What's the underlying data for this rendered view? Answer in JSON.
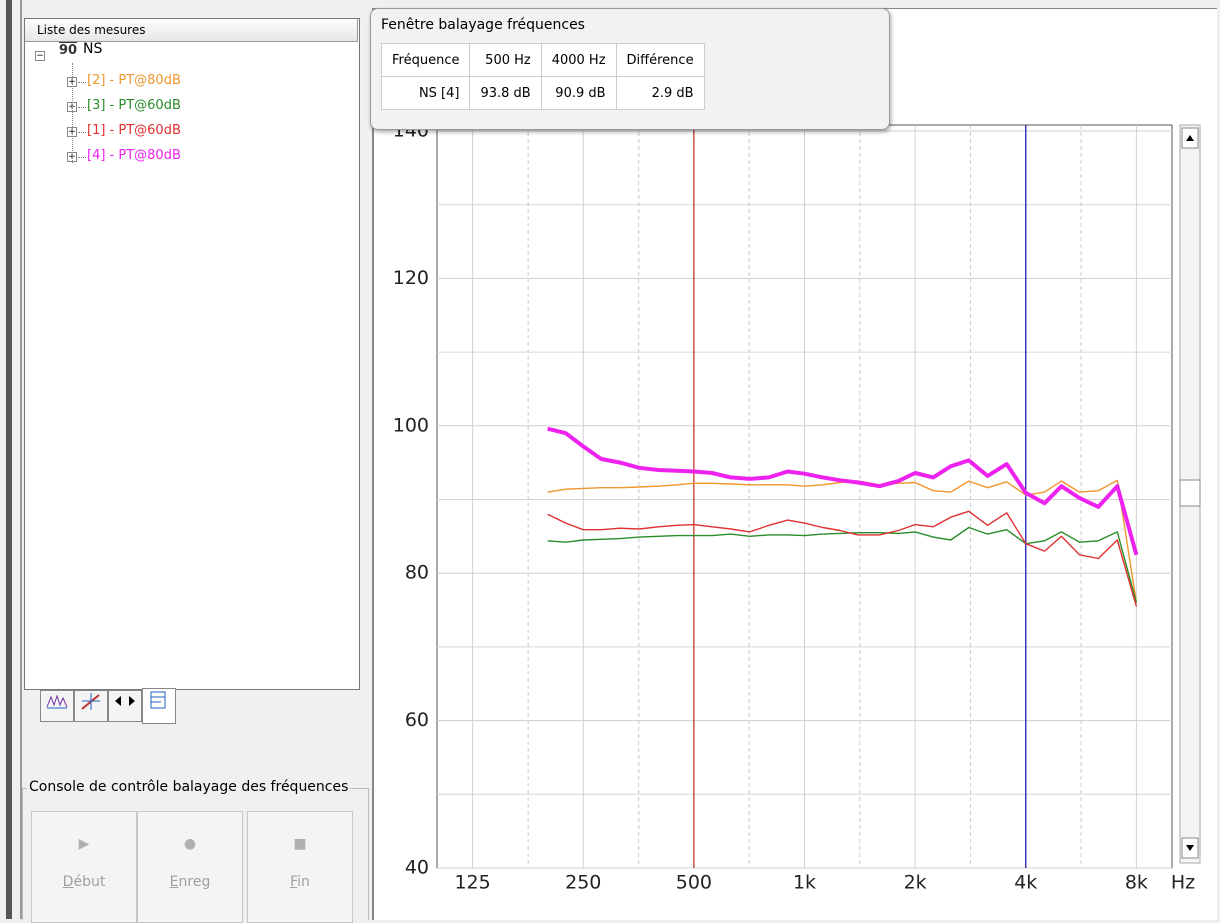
{
  "tree_header": "Liste des mesures",
  "tree": {
    "root": "NS",
    "root_icon": "90"
  },
  "console": {
    "title": "Console de contrôle balayage des fréquences",
    "buttons": [
      "Début",
      "Enreg",
      "Fin"
    ]
  },
  "popup": {
    "title": "Fenêtre balayage fréquences",
    "table": {
      "header": [
        "Fréquence",
        "500 Hz",
        "4000 Hz",
        "Différence"
      ],
      "rows": [
        [
          "NS [4]",
          "93.8 dB",
          "90.9 dB",
          "2.9 dB"
        ]
      ]
    }
  },
  "chart_data": {
    "type": "line",
    "xlog": true,
    "xlabel": "Hz",
    "xlim": [
      100,
      10000
    ],
    "ylim": [
      40,
      140
    ],
    "xticks": [
      125,
      250,
      500,
      {
        "value": 1000,
        "label": "1k"
      },
      {
        "value": 2000,
        "label": "2k"
      },
      {
        "value": 4000,
        "label": "4k"
      },
      {
        "value": 8000,
        "label": "8k"
      }
    ],
    "xminor": [
      177,
      354,
      707,
      1414,
      2828,
      5657
    ],
    "yticks": [
      40,
      60,
      80,
      100,
      120,
      140
    ],
    "yminor": [
      50,
      70,
      90,
      110,
      130
    ],
    "grid": true,
    "cursors": [
      {
        "value": 500,
        "color": "#c0392b"
      },
      {
        "value": 4000,
        "color": "#2020b0"
      }
    ],
    "x": [
      200,
      224,
      250,
      280,
      315,
      355,
      400,
      450,
      500,
      560,
      630,
      710,
      800,
      900,
      1000,
      1120,
      1250,
      1400,
      1600,
      1800,
      2000,
      2240,
      2500,
      2800,
      3150,
      3550,
      4000,
      4500,
      5000,
      5600,
      6300,
      7100,
      8000
    ],
    "series": [
      {
        "name": "[2] - PT@80dB",
        "color": "#f0962e",
        "width": 1.4,
        "values": [
          91.0,
          91.4,
          91.5,
          91.6,
          91.6,
          91.7,
          91.8,
          92.0,
          92.2,
          92.2,
          92.1,
          92.0,
          92.0,
          92.0,
          91.8,
          92.0,
          92.3,
          92.5,
          92.0,
          92.2,
          92.3,
          91.2,
          91.0,
          92.5,
          91.6,
          92.4,
          90.6,
          91.0,
          92.5,
          91.0,
          91.2,
          92.6,
          76.0
        ]
      },
      {
        "name": "[3] - PT@60dB",
        "color": "#2a8c2a",
        "width": 1.4,
        "values": [
          84.4,
          84.2,
          84.5,
          84.6,
          84.7,
          84.9,
          85.0,
          85.1,
          85.1,
          85.1,
          85.3,
          85.0,
          85.2,
          85.2,
          85.1,
          85.3,
          85.4,
          85.5,
          85.5,
          85.4,
          85.6,
          84.9,
          84.5,
          86.2,
          85.3,
          85.9,
          84.0,
          84.4,
          85.6,
          84.2,
          84.4,
          85.6,
          76.0
        ]
      },
      {
        "name": "[1] - PT@60dB",
        "color": "#e03030",
        "width": 1.4,
        "values": [
          88.0,
          86.8,
          85.9,
          85.9,
          86.1,
          86.0,
          86.3,
          86.5,
          86.6,
          86.3,
          86.0,
          85.6,
          86.5,
          87.2,
          86.8,
          86.2,
          85.8,
          85.2,
          85.2,
          85.8,
          86.6,
          86.3,
          87.6,
          88.4,
          86.5,
          88.2,
          84.0,
          83.0,
          85.0,
          82.5,
          82.0,
          84.5,
          75.5
        ]
      },
      {
        "name": "[4] - PT@80dB",
        "color": "#ee22ee",
        "width": 4,
        "values": [
          99.6,
          99.0,
          97.2,
          95.5,
          95.0,
          94.3,
          94.0,
          93.9,
          93.8,
          93.6,
          93.0,
          92.8,
          93.0,
          93.8,
          93.5,
          93.0,
          92.6,
          92.3,
          91.8,
          92.5,
          93.6,
          93.0,
          94.5,
          95.3,
          93.2,
          94.8,
          90.9,
          89.5,
          91.8,
          90.2,
          89.0,
          91.8,
          82.5
        ]
      }
    ]
  }
}
